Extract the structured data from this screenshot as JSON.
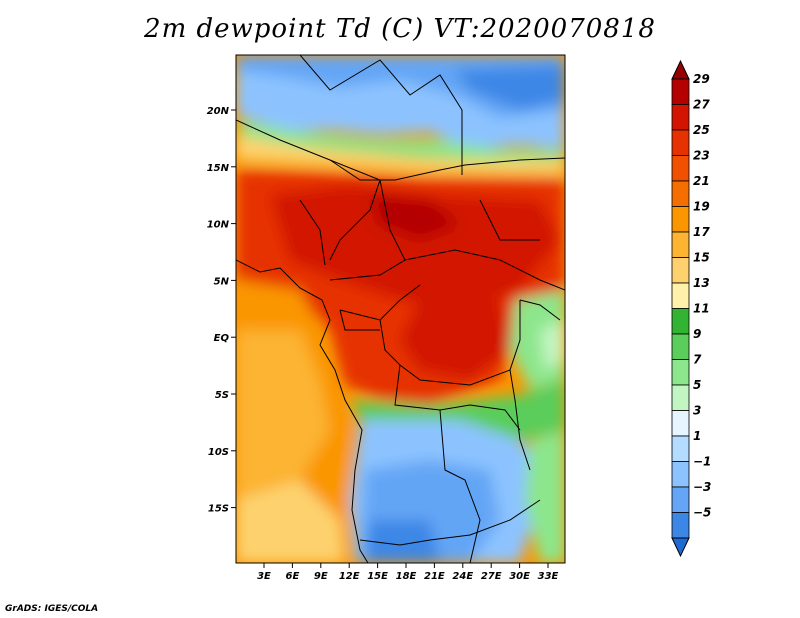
{
  "title": "2m dewpoint Td (C) VT:2020070818",
  "credit": "GrADS: IGES/COLA",
  "map": {
    "lat_labels": [
      "20N",
      "15N",
      "10N",
      "5N",
      "EQ",
      "5S",
      "10S",
      "15S"
    ],
    "lon_labels": [
      "3E",
      "6E",
      "9E",
      "12E",
      "15E",
      "18E",
      "21E",
      "24E",
      "27E",
      "30E",
      "33E"
    ]
  },
  "colorbar": {
    "labels": [
      "29",
      "27",
      "25",
      "23",
      "21",
      "19",
      "17",
      "15",
      "13",
      "11",
      "9",
      "7",
      "5",
      "3",
      "1",
      "−1",
      "−3",
      "−5"
    ],
    "colors": [
      "#960000",
      "#b40000",
      "#d21400",
      "#e63200",
      "#f05000",
      "#f56e00",
      "#fa9600",
      "#fcb432",
      "#fdd26e",
      "#fff0aa",
      "#32b432",
      "#5acd5a",
      "#8ce68c",
      "#c3f5c3",
      "#e6f5ff",
      "#b4dcff",
      "#8cc3ff",
      "#64a5f5",
      "#3c87e6",
      "#1e69d2"
    ]
  }
}
